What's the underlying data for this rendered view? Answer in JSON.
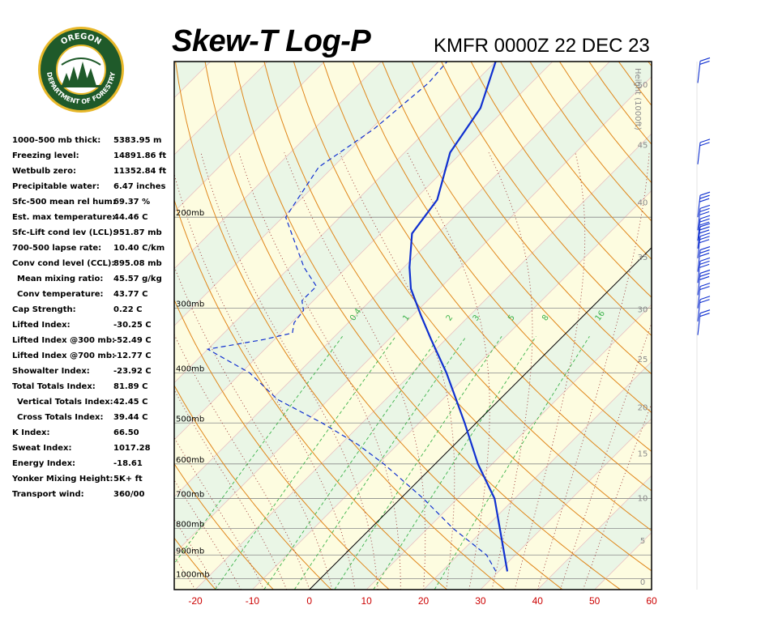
{
  "header": {
    "title": "Skew-T Log-P",
    "station": "KMFR 0000Z 22 DEC 23"
  },
  "logo": {
    "top_text": "OREGON",
    "bottom_text": "DEPARTMENT OF FORESTRY",
    "colors": {
      "ring": "#1f5a2a",
      "rim": "#e8b82a",
      "inner": "#ffffff",
      "trees": "#1f5a2a"
    }
  },
  "indices": [
    {
      "label": "1000-500 mb thick:",
      "value": "5383.95 m",
      "indent": false
    },
    {
      "label": "Freezing level:",
      "value": "14891.86 ft",
      "indent": false
    },
    {
      "label": "Wetbulb zero:",
      "value": "11352.84 ft",
      "indent": false
    },
    {
      "label": "Precipitable water:",
      "value": "6.47 inches",
      "indent": false
    },
    {
      "label": "Sfc-500 mean rel hum:",
      "value": "69.37 %",
      "indent": false
    },
    {
      "label": "Est. max temperature:",
      "value": "44.46 C",
      "indent": false
    },
    {
      "label": "Sfc-Lift cond lev (LCL):",
      "value": "951.87 mb",
      "indent": false
    },
    {
      "label": "700-500 lapse rate:",
      "value": "10.40 C/km",
      "indent": false
    },
    {
      "label": "Conv cond level (CCL):",
      "value": "895.08 mb",
      "indent": false
    },
    {
      "label": "Mean mixing ratio:",
      "value": "45.57 g/kg",
      "indent": true
    },
    {
      "label": "Conv temperature:",
      "value": "43.77 C",
      "indent": true
    },
    {
      "label": "Cap Strength:",
      "value": "0.22 C",
      "indent": false
    },
    {
      "label": "Lifted Index:",
      "value": "-30.25 C",
      "indent": false
    },
    {
      "label": "Lifted Index @300 mb:",
      "value": "-52.49 C",
      "indent": false
    },
    {
      "label": "Lifted Index @700 mb:",
      "value": "-12.77 C",
      "indent": false
    },
    {
      "label": "Showalter Index:",
      "value": "-23.92 C",
      "indent": false
    },
    {
      "label": "Total Totals Index:",
      "value": "81.89 C",
      "indent": false
    },
    {
      "label": "Vertical Totals Index:",
      "value": "42.45 C",
      "indent": true
    },
    {
      "label": "Cross Totals Index:",
      "value": "39.44 C",
      "indent": true
    },
    {
      "label": "K Index:",
      "value": "66.50",
      "indent": false
    },
    {
      "label": "Sweat Index:",
      "value": "1017.28",
      "indent": false
    },
    {
      "label": "Energy Index:",
      "value": "-18.61",
      "indent": false
    },
    {
      "label": "Yonker Mixing Height:",
      "value": "5K+ ft",
      "indent": false
    },
    {
      "label": "Transport wind:",
      "value": "360/00",
      "indent": false
    }
  ],
  "chart_data": {
    "type": "line",
    "plot": "skew-t log-p",
    "x_axis": {
      "label": "",
      "ticks": [
        "-20",
        "-10",
        "0",
        "10",
        "20",
        "30",
        "40",
        "50",
        "60"
      ],
      "values": [
        -20,
        -10,
        0,
        10,
        20,
        30,
        40,
        50,
        60
      ],
      "range": [
        -23.7,
        60
      ],
      "color": "#cc0000"
    },
    "y_axis": {
      "label": "",
      "scale": "log",
      "range_mb": [
        1050,
        100
      ],
      "isobars": [
        {
          "p": 1000,
          "label": "1000mb"
        },
        {
          "p": 900,
          "label": "900mb"
        },
        {
          "p": 800,
          "label": "800mb"
        },
        {
          "p": 700,
          "label": "700mb"
        },
        {
          "p": 600,
          "label": "600mb"
        },
        {
          "p": 500,
          "label": "500mb"
        },
        {
          "p": 400,
          "label": "400mb"
        },
        {
          "p": 300,
          "label": "300mb"
        },
        {
          "p": 200,
          "label": "200mb"
        }
      ]
    },
    "height_axis": {
      "label": "Height (1000ft)",
      "ticks": [
        "0",
        "5",
        "10",
        "15",
        "20",
        "25",
        "30",
        "35",
        "40",
        "45",
        "50"
      ],
      "values_kft": [
        0,
        5,
        10,
        15,
        20,
        25,
        30,
        35,
        40,
        45,
        50
      ]
    },
    "mixing_ratio_labels": [
      "0.4",
      "1",
      "2",
      "3",
      "5",
      "8",
      "16"
    ],
    "mixing_ratio_values": [
      0.4,
      1,
      2,
      3,
      5,
      8,
      16
    ],
    "isotherm_step_C": 10,
    "dry_adiabat_step_C": 10,
    "moist_adiabat_step_C": 4,
    "grid": true,
    "temperature_series": {
      "style": "solid",
      "color": "#1030d0",
      "points": [
        {
          "p": 968,
          "t": 31.5
        },
        {
          "p": 700,
          "t": 16.5
        },
        {
          "p": 600,
          "t": 7.5
        },
        {
          "p": 500,
          "t": -2.0
        },
        {
          "p": 400,
          "t": -14.0
        },
        {
          "p": 345,
          "t": -22.5
        },
        {
          "p": 310,
          "t": -28.5
        },
        {
          "p": 275,
          "t": -35.0
        },
        {
          "p": 250,
          "t": -39.0
        },
        {
          "p": 215,
          "t": -44.5
        },
        {
          "p": 185,
          "t": -46.0
        },
        {
          "p": 150,
          "t": -52.0
        },
        {
          "p": 123,
          "t": -54.5
        },
        {
          "p": 100,
          "t": -60.0
        }
      ]
    },
    "dewpoint_series": {
      "style": "dashed",
      "color": "#1030d0",
      "points": [
        {
          "p": 968,
          "t": 29.5
        },
        {
          "p": 900,
          "t": 25.0
        },
        {
          "p": 800,
          "t": 14.5
        },
        {
          "p": 700,
          "t": 4.0
        },
        {
          "p": 600,
          "t": -9.0
        },
        {
          "p": 550,
          "t": -17.0
        },
        {
          "p": 500,
          "t": -27.0
        },
        {
          "p": 450,
          "t": -39.0
        },
        {
          "p": 400,
          "t": -48.5
        },
        {
          "p": 360,
          "t": -60.0
        },
        {
          "p": 345,
          "t": -52.0
        },
        {
          "p": 335,
          "t": -48.0
        },
        {
          "p": 320,
          "t": -49.5
        },
        {
          "p": 303,
          "t": -50.0
        },
        {
          "p": 290,
          "t": -52.0
        },
        {
          "p": 272,
          "t": -52.0
        },
        {
          "p": 250,
          "t": -57.5
        },
        {
          "p": 200,
          "t": -69.5
        },
        {
          "p": 160,
          "t": -72.5
        },
        {
          "p": 135,
          "t": -69.5
        },
        {
          "p": 110,
          "t": -68.0
        },
        {
          "p": 100,
          "t": -68.5
        }
      ]
    },
    "wind_barb_color": "#1030d0",
    "wind_barbs": [
      {
        "p": 110,
        "flags": 2
      },
      {
        "p": 158,
        "flags": 2
      },
      {
        "p": 200,
        "flags": 3
      },
      {
        "p": 212,
        "flags": 3
      },
      {
        "p": 222,
        "flags": 3
      },
      {
        "p": 230,
        "flags": 3
      },
      {
        "p": 240,
        "flags": 3
      },
      {
        "p": 255,
        "flags": 3
      },
      {
        "p": 268,
        "flags": 3
      },
      {
        "p": 283,
        "flags": 3
      },
      {
        "p": 300,
        "flags": 2
      },
      {
        "p": 318,
        "flags": 2
      },
      {
        "p": 338,
        "flags": 2
      }
    ],
    "colors": {
      "isotherm": "#e8c0c0",
      "isobar": "#8a8a8a",
      "dry_adiabat": "#e0861a",
      "moist_adiabat": "#9a3030",
      "mixing_ratio": "#3cb34a",
      "zero_isotherm": "#000000",
      "band_a": "#eaf6e6",
      "band_b": "#fdfce0"
    }
  }
}
